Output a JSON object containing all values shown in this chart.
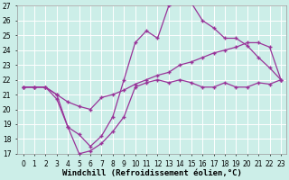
{
  "xlabel": "Windchill (Refroidissement éolien,°C)",
  "xlim": [
    -0.5,
    23.5
  ],
  "ylim": [
    17,
    27
  ],
  "xticks": [
    0,
    1,
    2,
    3,
    4,
    5,
    6,
    7,
    8,
    9,
    10,
    11,
    12,
    13,
    14,
    15,
    16,
    17,
    18,
    19,
    20,
    21,
    22,
    23
  ],
  "yticks": [
    17,
    18,
    19,
    20,
    21,
    22,
    23,
    24,
    25,
    26,
    27
  ],
  "bg_color": "#cceee8",
  "grid_color": "#aaddcc",
  "line_color": "#993399",
  "line1_x": [
    0,
    1,
    2,
    3,
    4,
    5,
    6,
    7,
    8,
    9,
    10,
    11,
    12,
    13,
    14,
    15,
    16,
    17,
    18,
    19,
    20,
    21,
    22,
    23
  ],
  "line1_y": [
    21.5,
    21.5,
    21.5,
    20.7,
    18.8,
    17.0,
    17.2,
    17.7,
    18.5,
    19.5,
    21.5,
    21.8,
    22.0,
    21.8,
    22.0,
    21.8,
    21.5,
    21.5,
    21.8,
    21.5,
    21.5,
    21.8,
    21.7,
    22.0
  ],
  "line2_x": [
    0,
    1,
    2,
    3,
    4,
    5,
    6,
    7,
    8,
    9,
    10,
    11,
    12,
    13,
    14,
    15,
    16,
    17,
    18,
    19,
    20,
    21,
    22,
    23
  ],
  "line2_y": [
    21.5,
    21.5,
    21.5,
    21.0,
    20.5,
    20.2,
    20.0,
    20.8,
    21.0,
    21.3,
    21.7,
    22.0,
    22.3,
    22.5,
    23.0,
    23.2,
    23.5,
    23.8,
    24.0,
    24.2,
    24.5,
    24.5,
    24.2,
    22.0
  ],
  "line3_x": [
    0,
    1,
    2,
    3,
    4,
    5,
    6,
    7,
    8,
    9,
    10,
    11,
    12,
    13,
    14,
    15,
    16,
    17,
    18,
    19,
    20,
    21,
    22,
    23
  ],
  "line3_y": [
    21.5,
    21.5,
    21.5,
    21.0,
    18.8,
    18.3,
    17.5,
    18.2,
    19.5,
    22.0,
    24.5,
    25.3,
    24.8,
    27.0,
    27.2,
    27.2,
    26.0,
    25.5,
    24.8,
    24.8,
    24.3,
    23.5,
    22.8,
    22.0
  ],
  "marker": "+",
  "markersize": 3,
  "linewidth": 0.9,
  "tick_fontsize": 5.5,
  "label_fontsize": 6.5
}
